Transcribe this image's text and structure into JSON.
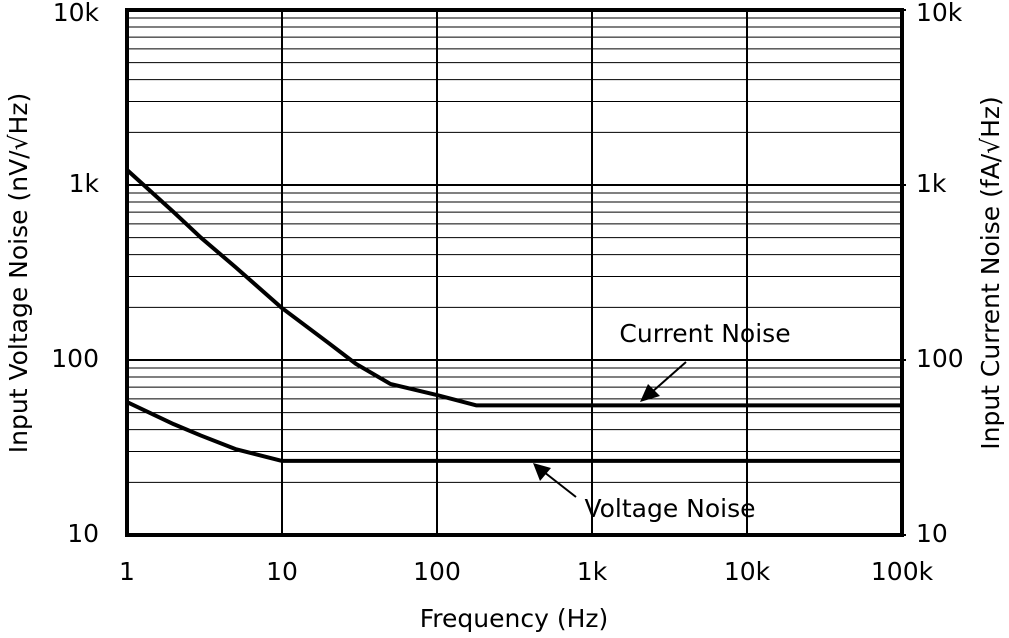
{
  "chart_data": {
    "type": "line",
    "x_label": "Frequency (Hz)",
    "y_label": "Input Voltage Noise (nV/√Hz)",
    "y2_label": "Input Current Noise (fA/√Hz)",
    "x": [
      1,
      2,
      3,
      5,
      10,
      20,
      30,
      50,
      100,
      180,
      1000,
      10000,
      100000
    ],
    "series": [
      {
        "name": "Current Noise",
        "color": "#000000",
        "values": [
          1220,
          700,
          500,
          340,
          198,
          125,
          95,
          73,
          63,
          55,
          55,
          55,
          55
        ]
      },
      {
        "name": "Voltage Noise",
        "color": "#000000",
        "values": [
          57.5,
          43,
          37,
          31,
          26.5,
          26.5,
          26.5,
          26.5,
          26.5,
          26.5,
          26.5,
          26.5,
          26.5
        ]
      }
    ],
    "xlim": [
      1,
      100000
    ],
    "xticks": [
      1,
      10,
      100,
      {
        "value": 1000,
        "label": "1k"
      },
      {
        "value": 10000,
        "label": "10k"
      },
      {
        "value": 100000,
        "label": "100k"
      }
    ],
    "ylim": [
      10,
      10000
    ],
    "yticks": [
      10,
      100,
      {
        "value": 1000,
        "label": "1k"
      },
      {
        "value": 10000,
        "label": "10k"
      }
    ],
    "y2lim": [
      10,
      10000
    ],
    "y2ticks": [
      10,
      100,
      {
        "value": 1000,
        "label": "1k"
      },
      {
        "value": 10000,
        "label": "10k"
      }
    ],
    "log_x": true,
    "log_y": true,
    "grid": true
  }
}
